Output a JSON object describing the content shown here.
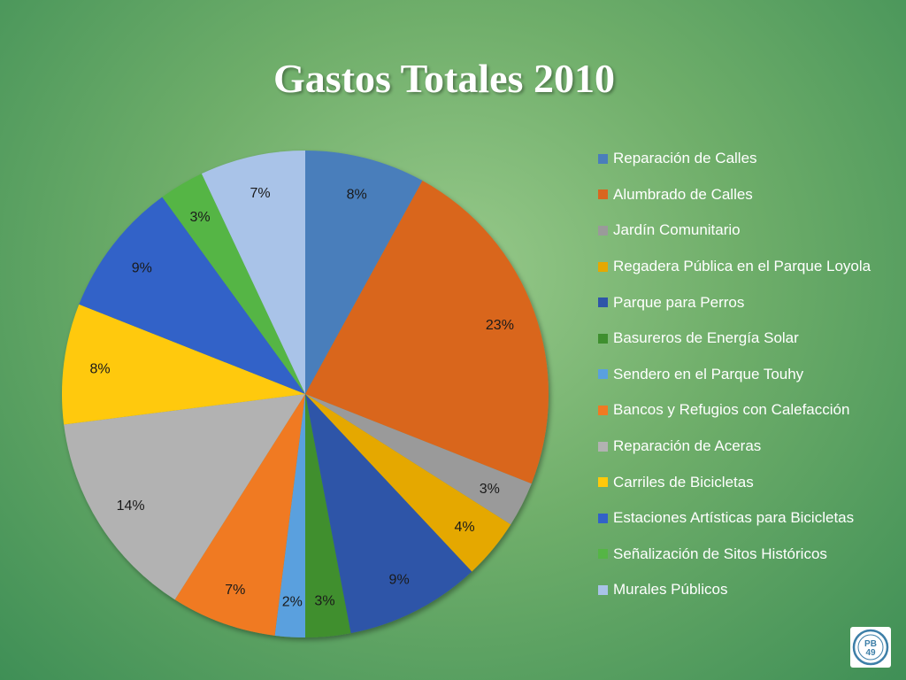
{
  "chart_data": {
    "type": "pie",
    "title": "Gastos Totales 2010",
    "legend_position": "right",
    "categories": [
      "Reparación de Calles",
      "Alumbrado de Calles",
      "Jardín Comunitario",
      "Regadera Pública en el Parque Loyola",
      "Parque para Perros",
      "Basureros de Energía Solar",
      "Sendero en el Parque Touhy",
      "Bancos y Refugios con Calefacción",
      "Reparación de Aceras",
      "Carriles de Bicicletas",
      "Estaciones Artísticas para Bicicletas",
      "Señalización de Sitos Históricos",
      "Murales Públicos"
    ],
    "values": [
      8,
      23,
      3,
      4,
      9,
      3,
      2,
      7,
      14,
      8,
      9,
      3,
      7
    ],
    "data_labels": [
      "8%",
      "23%",
      "3%",
      "4%",
      "9%",
      "3%",
      "2%",
      "7%",
      "14%",
      "8%",
      "9%",
      "3%",
      "7%"
    ],
    "colors": [
      "#4a7ebb",
      "#d9661f",
      "#9a9a9a",
      "#e5a800",
      "#2f55a8",
      "#3f8f2f",
      "#5aa0de",
      "#f07a22",
      "#b2b2b2",
      "#ffc90a",
      "#3262c8",
      "#55b545",
      "#a9c3e8"
    ]
  },
  "logo": {
    "icon": "pb49-logo-icon",
    "text": "PB 49"
  }
}
